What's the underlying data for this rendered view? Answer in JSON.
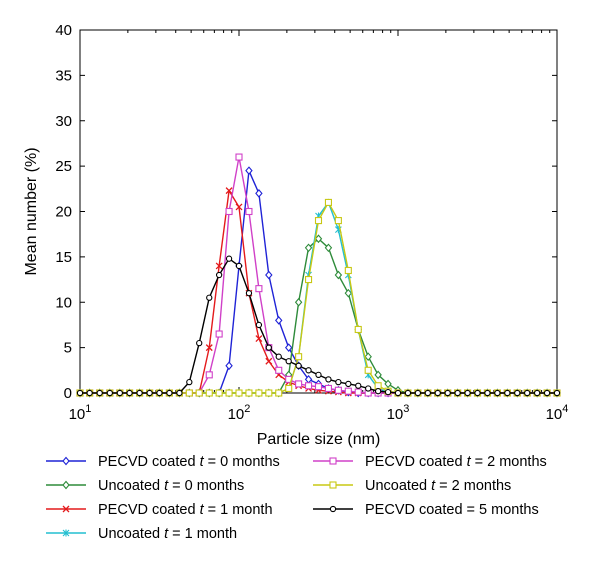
{
  "chart_data": {
    "type": "line",
    "xlabel": "Particle size (nm)",
    "ylabel": "Mean number (%)",
    "xscale": "log",
    "xlim": [
      10,
      10000
    ],
    "ylim": [
      0,
      40
    ],
    "yticks": [
      0,
      5,
      10,
      15,
      20,
      25,
      30,
      35,
      40
    ],
    "xticks": [
      {
        "value": 10,
        "base": "10",
        "exp": "1"
      },
      {
        "value": 100,
        "base": "10",
        "exp": "2"
      },
      {
        "value": 1000,
        "base": "10",
        "exp": "3"
      },
      {
        "value": 10000,
        "base": "10",
        "exp": "4"
      }
    ],
    "grid": false,
    "legend_position": "bottom",
    "x": [
      10.0,
      11.5,
      13.3,
      15.4,
      17.8,
      20.5,
      23.7,
      27.4,
      31.6,
      36.5,
      42.2,
      48.7,
      56.2,
      65.0,
      75.0,
      86.6,
      100.0,
      115.5,
      133.4,
      154.0,
      177.8,
      205.4,
      237.1,
      273.8,
      316.2,
      365.2,
      421.7,
      487.0,
      562.3,
      649.4,
      749.9,
      866.0,
      1000.0,
      1154.8,
      1333.5,
      1539.9,
      1778.3,
      2053.5,
      2371.4,
      2738.4,
      3162.3,
      3651.7,
      4217.0,
      4869.7,
      5623.4,
      6493.8,
      7498.9,
      8659.6,
      10000.0
    ],
    "series": [
      {
        "name_prefix": "PECVD coated ",
        "name_var": "t",
        "name_suffix": " = 0 months",
        "color": "#1f23d6",
        "marker": "diamond",
        "values": [
          0,
          0,
          0,
          0,
          0,
          0,
          0,
          0,
          0,
          0,
          0,
          0,
          0,
          0,
          0,
          3,
          14,
          24.5,
          22,
          13,
          8,
          5,
          3,
          1.5,
          1,
          0.5,
          0.3,
          0.1,
          0,
          0,
          0,
          0,
          0,
          0,
          0,
          0,
          0,
          0,
          0,
          0,
          0,
          0,
          0,
          0,
          0,
          0,
          0,
          0,
          0
        ]
      },
      {
        "name_prefix": "Uncoated ",
        "name_var": "t",
        "name_suffix": " = 0 months",
        "color": "#2e8b3a",
        "marker": "diamond",
        "values": [
          0,
          0,
          0,
          0,
          0,
          0,
          0,
          0,
          0,
          0,
          0,
          0,
          0,
          0,
          0,
          0,
          0,
          0,
          0,
          0,
          0,
          2,
          10,
          16,
          17,
          16,
          13,
          11,
          7,
          4,
          2,
          1,
          0.3,
          0,
          0,
          0,
          0,
          0,
          0,
          0,
          0,
          0,
          0,
          0,
          0,
          0,
          0,
          0,
          0
        ]
      },
      {
        "name_prefix": "PECVD coated ",
        "name_var": "t",
        "name_suffix": " = 1 month",
        "color": "#e41a1c",
        "marker": "x",
        "values": [
          0,
          0,
          0,
          0,
          0,
          0,
          0,
          0,
          0,
          0,
          0,
          0,
          0,
          5,
          14,
          22.3,
          20.5,
          11,
          6,
          3.5,
          2,
          1.2,
          0.8,
          0.5,
          0.3,
          0.2,
          0.1,
          0,
          0,
          0,
          0,
          0,
          0,
          0,
          0,
          0,
          0,
          0,
          0,
          0,
          0,
          0,
          0,
          0,
          0,
          0,
          0,
          0,
          0
        ]
      },
      {
        "name_prefix": "Uncoated ",
        "name_var": "t",
        "name_suffix": " = 1 month",
        "color": "#22bfd0",
        "marker": "star",
        "values": [
          0,
          0,
          0,
          0,
          0,
          0,
          0,
          0,
          0,
          0,
          0,
          0,
          0,
          0,
          0,
          0,
          0,
          0,
          0,
          0,
          0,
          0.5,
          4,
          13,
          19.5,
          21,
          18,
          13,
          7,
          2,
          0.5,
          0.1,
          0,
          0,
          0,
          0,
          0,
          0,
          0,
          0,
          0,
          0,
          0,
          0,
          0,
          0,
          0,
          0,
          0
        ]
      },
      {
        "name_prefix": "PECVD coated ",
        "name_var": "t",
        "name_suffix": " = 2 months",
        "color": "#d040c8",
        "marker": "square",
        "values": [
          0,
          0,
          0,
          0,
          0,
          0,
          0,
          0,
          0,
          0,
          0,
          0,
          0,
          2,
          6.5,
          20,
          26,
          20,
          11.5,
          5,
          2.5,
          1.5,
          1,
          0.8,
          0.7,
          0.5,
          0.3,
          0.2,
          0.1,
          0,
          0,
          0,
          0,
          0,
          0,
          0,
          0,
          0,
          0,
          0,
          0,
          0,
          0,
          0,
          0,
          0,
          0,
          0,
          0
        ]
      },
      {
        "name_prefix": "Uncoated ",
        "name_var": "t",
        "name_suffix": " = 2 months",
        "color": "#c8c814",
        "marker": "square",
        "values": [
          0,
          0,
          0,
          0,
          0,
          0,
          0,
          0,
          0,
          0,
          0,
          0,
          0,
          0,
          0,
          0,
          0,
          0,
          0,
          0,
          0,
          0.5,
          4,
          12.5,
          19,
          21,
          19,
          13.5,
          7,
          2.5,
          0.8,
          0.2,
          0,
          0,
          0,
          0,
          0,
          0,
          0,
          0,
          0,
          0,
          0,
          0,
          0,
          0,
          0,
          0,
          0
        ]
      },
      {
        "name_prefix": "PECVD coated = 5 months",
        "name_var": "",
        "name_suffix": "",
        "color": "#000000",
        "marker": "circle",
        "values": [
          0,
          0,
          0,
          0,
          0,
          0,
          0,
          0,
          0,
          0,
          0,
          1.2,
          5.5,
          10.5,
          13,
          14.8,
          14,
          11,
          7.5,
          5,
          4,
          3.5,
          3,
          2.5,
          2,
          1.5,
          1.2,
          1,
          0.8,
          0.5,
          0.2,
          0.1,
          0,
          0,
          0,
          0,
          0,
          0,
          0,
          0,
          0,
          0,
          0,
          0,
          0,
          0,
          0,
          0,
          0
        ]
      }
    ]
  }
}
